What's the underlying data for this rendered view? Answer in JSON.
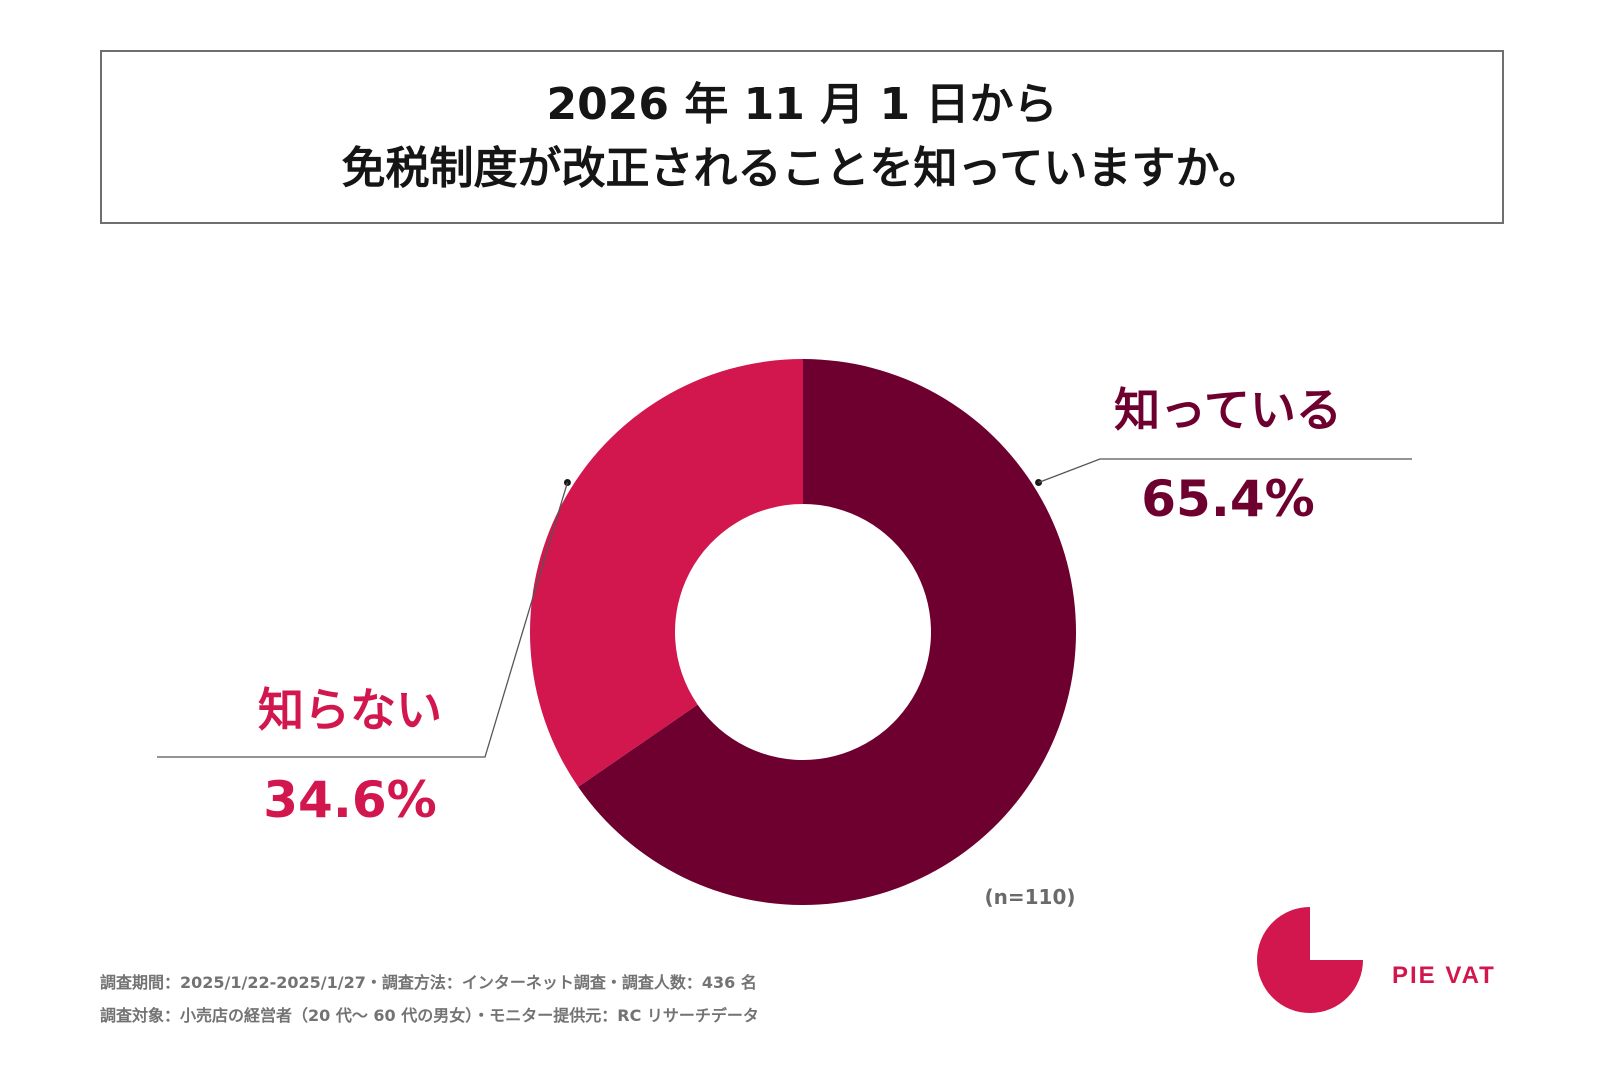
{
  "title": {
    "line1": "2026 年 11 月 1 日から",
    "line2": "免税制度が改正されることを知っていますか。"
  },
  "chart_data": {
    "type": "pie",
    "variant": "donut",
    "title": "2026 年 11 月 1 日から 免税制度が改正されることを知っていますか。",
    "categories": [
      "知っている",
      "知らない"
    ],
    "values": [
      65.4,
      34.6
    ],
    "value_labels": [
      "65.4%",
      "34.6%"
    ],
    "colors": [
      "#6e0030",
      "#d1174e"
    ],
    "sample_note": "(n=110)"
  },
  "logo": {
    "text": "PIE VAT",
    "color": "#d1174e"
  },
  "footer": {
    "line1": "調査期間：2025/1/22-2025/1/27・調査方法：インターネット調査・調査人数：436 名",
    "line2": "調査対象：小売店の経営者（20 代～ 60 代の男女）・モニター提供元：RC リサーチデータ"
  }
}
